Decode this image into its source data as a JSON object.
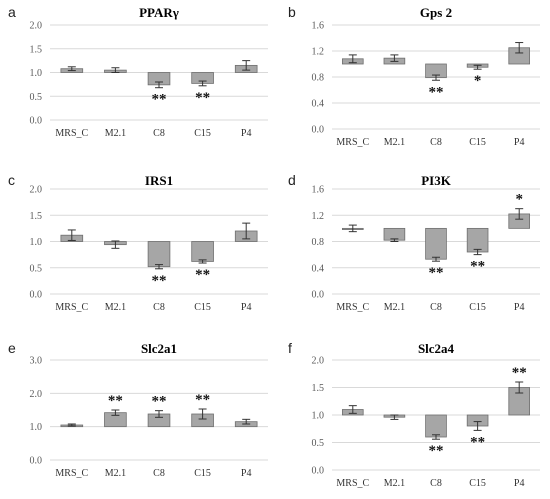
{
  "chart_data": [
    {
      "type": "bar",
      "panel": "a",
      "title": "PPARγ",
      "categories": [
        "MRS_C",
        "M2.1",
        "C8",
        "C15",
        "P4"
      ],
      "ylim": [
        0,
        2.0
      ],
      "yticks": [
        "0.0",
        "0.5",
        "1.0",
        "1.5",
        "2.0"
      ],
      "values": [
        1.08,
        1.05,
        0.74,
        0.77,
        1.15
      ],
      "errors": [
        0.04,
        0.05,
        0.06,
        0.05,
        0.1
      ],
      "annotations": [
        "",
        "",
        "**",
        "**",
        ""
      ],
      "baseline": 1.0,
      "bar_color": "#a6a6a6",
      "grid": true
    },
    {
      "type": "bar",
      "panel": "b",
      "title": "Gps 2",
      "categories": [
        "MRS_C",
        "M2.1",
        "C8",
        "C15",
        "P4"
      ],
      "ylim": [
        0,
        1.6
      ],
      "yticks": [
        "0.0",
        "0.4",
        "0.8",
        "1.2",
        "1.6"
      ],
      "values": [
        1.08,
        1.09,
        0.79,
        0.95,
        1.25
      ],
      "errors": [
        0.06,
        0.05,
        0.04,
        0.03,
        0.08
      ],
      "annotations": [
        "",
        "",
        "**",
        "*",
        ""
      ],
      "baseline": 1.0,
      "bar_color": "#a6a6a6",
      "grid": true
    },
    {
      "type": "bar",
      "panel": "c",
      "title": "IRS1",
      "categories": [
        "MRS_C",
        "M2.1",
        "C8",
        "C15",
        "P4"
      ],
      "ylim": [
        0,
        2.0
      ],
      "yticks": [
        "0.0",
        "0.5",
        "1.0",
        "1.5",
        "2.0"
      ],
      "values": [
        1.12,
        0.94,
        0.52,
        0.62,
        1.2
      ],
      "errors": [
        0.1,
        0.07,
        0.04,
        0.03,
        0.15
      ],
      "annotations": [
        "",
        "",
        "**",
        "**",
        ""
      ],
      "baseline": 1.0,
      "bar_color": "#a6a6a6",
      "grid": true
    },
    {
      "type": "bar",
      "panel": "d",
      "title": "PI3K",
      "categories": [
        "MRS_C",
        "M2.1",
        "C8",
        "C15",
        "P4"
      ],
      "ylim": [
        0,
        1.6
      ],
      "yticks": [
        "0.0",
        "0.4",
        "0.8",
        "1.2",
        "1.6"
      ],
      "values": [
        1.0,
        0.82,
        0.53,
        0.64,
        1.22
      ],
      "errors": [
        0.05,
        0.02,
        0.03,
        0.04,
        0.08
      ],
      "annotations": [
        "",
        "",
        "**",
        "**",
        "*"
      ],
      "baseline": 1.0,
      "bar_color": "#a6a6a6",
      "grid": true
    },
    {
      "type": "bar",
      "panel": "e",
      "title": "Slc2a1",
      "categories": [
        "MRS_C",
        "M2.1",
        "C8",
        "C15",
        "P4"
      ],
      "ylim": [
        0,
        3.0
      ],
      "yticks": [
        "0.0",
        "1.0",
        "2.0",
        "3.0"
      ],
      "values": [
        1.05,
        1.42,
        1.38,
        1.38,
        1.15
      ],
      "errors": [
        0.03,
        0.08,
        0.1,
        0.15,
        0.07
      ],
      "annotations": [
        "",
        "**",
        "**",
        "**",
        ""
      ],
      "baseline": 1.0,
      "bar_color": "#a6a6a6",
      "grid": true
    },
    {
      "type": "bar",
      "panel": "f",
      "title": "Slc2a4",
      "categories": [
        "MRS_C",
        "M2.1",
        "C8",
        "C15",
        "P4"
      ],
      "ylim": [
        0,
        2.0
      ],
      "yticks": [
        "0.0",
        "0.5",
        "1.0",
        "1.5",
        "2.0"
      ],
      "values": [
        1.1,
        0.96,
        0.6,
        0.8,
        1.5
      ],
      "errors": [
        0.07,
        0.04,
        0.04,
        0.08,
        0.1
      ],
      "annotations": [
        "",
        "",
        "**",
        "**",
        "**"
      ],
      "baseline": 1.0,
      "bar_color": "#a6a6a6",
      "grid": true
    }
  ]
}
